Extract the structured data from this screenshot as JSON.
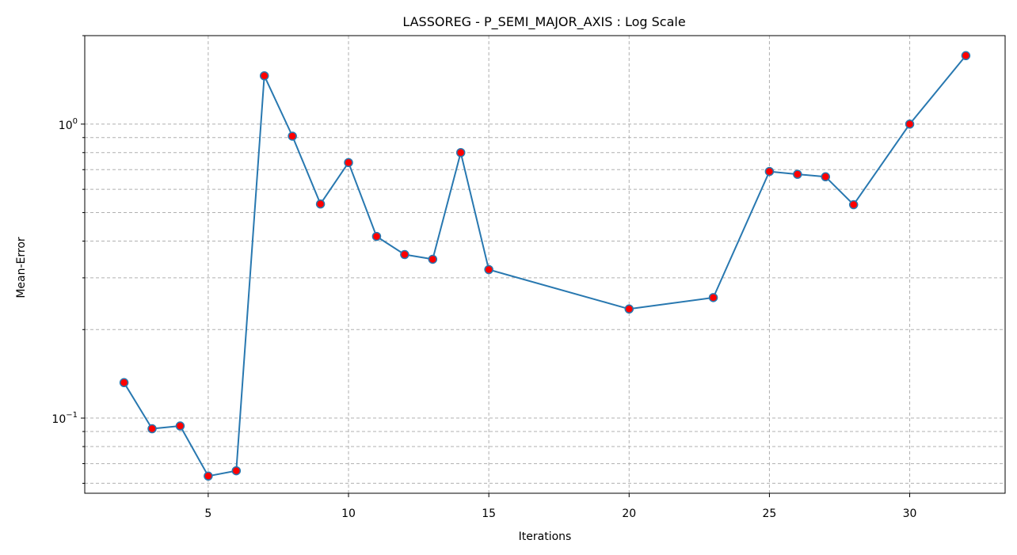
{
  "chart_data": {
    "type": "line",
    "title": "LASSOREG - P_SEMI_MAJOR_AXIS : Log Scale",
    "xlabel": "Iterations",
    "ylabel": "Mean-Error",
    "y_scale": "log",
    "xlim": [
      0.6,
      33.4
    ],
    "ylim": [
      0.0555,
      2.0
    ],
    "x_ticks": [
      5,
      10,
      15,
      20,
      25,
      30
    ],
    "y_major_ticks": [
      0.1,
      1
    ],
    "y_tick_labels": [
      {
        "base": "10",
        "exp": "−1"
      },
      {
        "base": "10",
        "exp": "0"
      }
    ],
    "grid": true,
    "series": [
      {
        "line_color": "#2878b0",
        "marker_face_color": "#ff0000",
        "points": [
          {
            "x": 2,
            "y": 0.132
          },
          {
            "x": 3,
            "y": 0.092
          },
          {
            "x": 4,
            "y": 0.094
          },
          {
            "x": 5,
            "y": 0.0635
          },
          {
            "x": 6,
            "y": 0.0662
          },
          {
            "x": 7,
            "y": 1.46
          },
          {
            "x": 8,
            "y": 0.91
          },
          {
            "x": 9,
            "y": 0.535
          },
          {
            "x": 10,
            "y": 0.74
          },
          {
            "x": 11,
            "y": 0.415
          },
          {
            "x": 12,
            "y": 0.36
          },
          {
            "x": 13,
            "y": 0.347
          },
          {
            "x": 14,
            "y": 0.8
          },
          {
            "x": 15,
            "y": 0.32
          },
          {
            "x": 20,
            "y": 0.235
          },
          {
            "x": 23,
            "y": 0.257
          },
          {
            "x": 25,
            "y": 0.69
          },
          {
            "x": 26,
            "y": 0.675
          },
          {
            "x": 27,
            "y": 0.662
          },
          {
            "x": 28,
            "y": 0.532
          },
          {
            "x": 30,
            "y": 1.0
          },
          {
            "x": 32,
            "y": 1.71
          }
        ]
      }
    ]
  }
}
